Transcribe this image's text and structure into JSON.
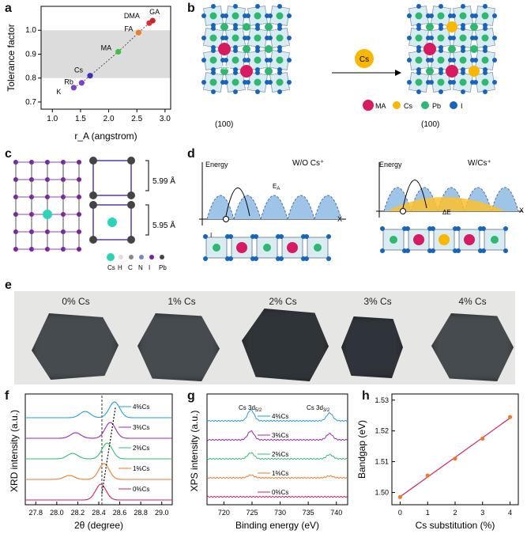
{
  "panel_labels": {
    "a": "a",
    "b": "b",
    "c": "c",
    "d": "d",
    "e": "e",
    "f": "f",
    "g": "g",
    "h": "h"
  },
  "panel_a": {
    "chart_data": {
      "type": "scatter",
      "xlabel": "r_A (angstrom)",
      "ylabel": "Tolerance factor",
      "xlim": [
        0.8,
        3.1
      ],
      "ylim": [
        0.67,
        1.1
      ],
      "xticks": [
        "1.0",
        "1.5",
        "2.0",
        "2.5",
        "3.0"
      ],
      "yticks": [
        "0.7",
        "0.8",
        "0.9",
        "1.0"
      ],
      "shaded_band": [
        0.8,
        1.0
      ],
      "points": [
        {
          "label": "K",
          "x": 1.38,
          "y": 0.76,
          "color": "#7b3fd1"
        },
        {
          "label": "Rb",
          "x": 1.52,
          "y": 0.78,
          "color": "#7b3fd1"
        },
        {
          "label": "Cs",
          "x": 1.67,
          "y": 0.81,
          "color": "#3a2fbf"
        },
        {
          "label": "MA",
          "x": 2.17,
          "y": 0.91,
          "color": "#3cc23c"
        },
        {
          "label": "FA",
          "x": 2.53,
          "y": 0.99,
          "color": "#f07a28"
        },
        {
          "label": "DMA",
          "x": 2.72,
          "y": 1.03,
          "color": "#d8303a"
        },
        {
          "label": "GA",
          "x": 2.78,
          "y": 1.04,
          "color": "#c62828"
        }
      ]
    }
  },
  "panel_b": {
    "cs_label": "Cs",
    "left_label": "(100)",
    "right_label": "(100)",
    "ma_label": "MA",
    "legend": [
      {
        "label": "MA",
        "color": "#d81b60"
      },
      {
        "label": "Cs",
        "color": "#f9b700"
      },
      {
        "label": "Pb",
        "color": "#2eb872"
      },
      {
        "label": "I",
        "color": "#1565c0"
      }
    ]
  },
  "panel_c": {
    "d1": "5.99 Å",
    "d2": "5.95 Å",
    "legend": [
      "Cs",
      "H",
      "C",
      "N",
      "I",
      "Pb"
    ]
  },
  "panel_d": {
    "left_title": "W/O Cs⁺",
    "right_title": "W/Cs⁺",
    "energy": "Energy",
    "x": "X",
    "ea": "E",
    "ea_sub": "A",
    "de": "ΔE",
    "i_label": "I"
  },
  "panel_e": {
    "labels": [
      "0% Cs",
      "1% Cs",
      "2% Cs",
      "3% Cs",
      "4% Cs"
    ]
  },
  "panel_f": {
    "chart_data": {
      "type": "line",
      "xlabel": "2θ (degree)",
      "ylabel": "XRD intensity (a.u.)",
      "xlim": [
        27.7,
        29.1
      ],
      "xticks": [
        "27.8",
        "28.0",
        "28.2",
        "28.4",
        "28.6",
        "28.8",
        "29.0"
      ],
      "series": [
        {
          "name": "0%Cs",
          "color": "#d81b60",
          "peaks": [
            [
              28.42,
              1.0
            ]
          ]
        },
        {
          "name": "1%Cs",
          "color": "#ef7a2a",
          "peaks": [
            [
              28.12,
              0.25
            ],
            [
              28.45,
              1.0
            ]
          ]
        },
        {
          "name": "2%Cs",
          "color": "#2fbf71",
          "peaks": [
            [
              28.15,
              0.35
            ],
            [
              28.48,
              1.0
            ]
          ]
        },
        {
          "name": "3%Cs",
          "color": "#9c27b0",
          "peaks": [
            [
              28.18,
              0.35
            ],
            [
              28.51,
              1.0
            ]
          ]
        },
        {
          "name": "4%Cs",
          "color": "#1e9fe0",
          "peaks": [
            [
              28.27,
              0.4
            ],
            [
              28.55,
              1.0
            ]
          ]
        }
      ]
    }
  },
  "panel_g": {
    "chart_data": {
      "type": "line",
      "xlabel": "Binding energy (eV)",
      "ylabel": "XPS intensity (a.u.)",
      "xlim": [
        717,
        742
      ],
      "xticks": [
        "720",
        "725",
        "730",
        "735",
        "740"
      ],
      "peak_labels": [
        {
          "text": "Cs 3d",
          "sub": "5/2"
        },
        {
          "text": "Cs 3d",
          "sub": "3/2"
        }
      ],
      "series": [
        {
          "name": "0%Cs",
          "color": "#d81b60",
          "amp": 0.0
        },
        {
          "name": "1%Cs",
          "color": "#ef7a2a",
          "amp": 0.25
        },
        {
          "name": "2%Cs",
          "color": "#2fbf71",
          "amp": 0.55
        },
        {
          "name": "3%Cs",
          "color": "#9c27b0",
          "amp": 0.8
        },
        {
          "name": "4%Cs",
          "color": "#1e9fe0",
          "amp": 1.0
        }
      ]
    }
  },
  "panel_h": {
    "chart_data": {
      "type": "scatter",
      "xlabel": "Cs substitution (%)",
      "ylabel": "Bandgap (eV)",
      "xlim": [
        -0.3,
        4.3
      ],
      "ylim": [
        1.496,
        1.532
      ],
      "xticks": [
        "0",
        "1",
        "2",
        "3",
        "4"
      ],
      "yticks": [
        "1.50",
        "1.51",
        "1.52",
        "1.53"
      ],
      "x": [
        0,
        1,
        2,
        3,
        4
      ],
      "y": [
        1.4985,
        1.5055,
        1.511,
        1.5175,
        1.5245
      ],
      "point_color": "#ef7a2a",
      "fit_color": "#d81b60"
    }
  }
}
